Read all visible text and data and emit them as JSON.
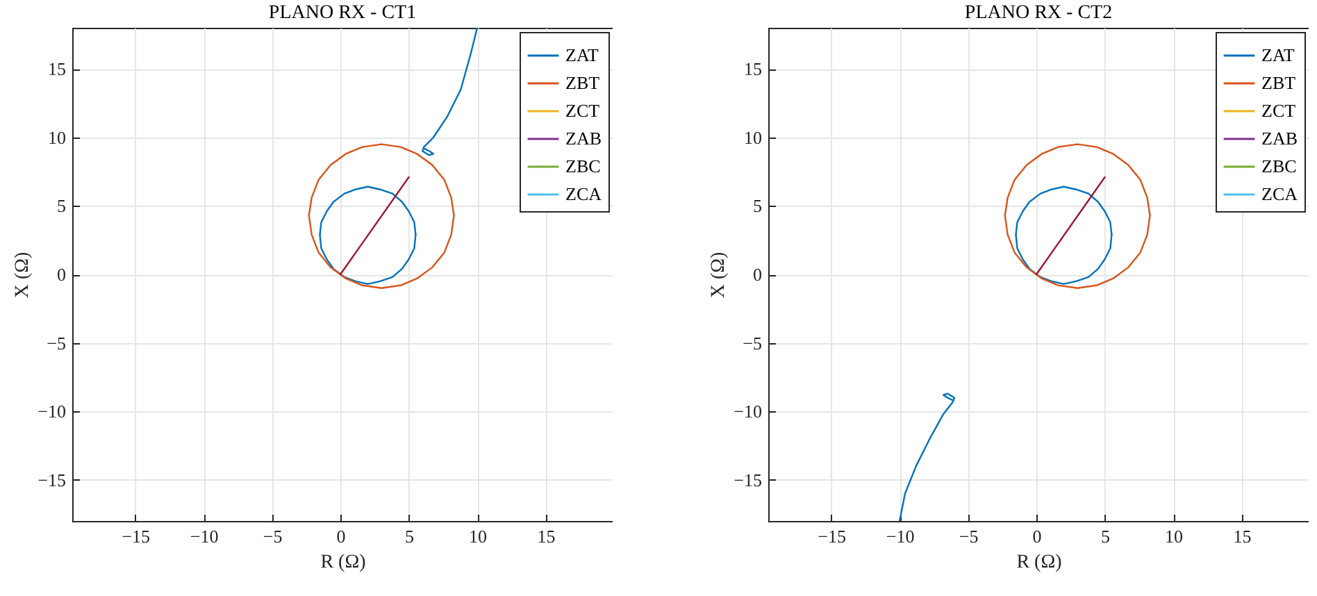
{
  "chart_data": [
    {
      "type": "line",
      "title": "PLANO RX - CT1",
      "xlabel": "R (Ω)",
      "ylabel": "X (Ω)",
      "xlim": [
        -19.6,
        19.9
      ],
      "ylim": [
        -18,
        18
      ],
      "xticks": [
        -15,
        -10,
        -5,
        0,
        5,
        10,
        15
      ],
      "yticks": [
        -15,
        -10,
        -5,
        0,
        5,
        10,
        15
      ],
      "grid": true,
      "legend": "top right",
      "line_style": "solid",
      "marker": "none",
      "series": [
        {
          "name": "ZAT",
          "color": "#0072bd",
          "x": [
            10,
            9.5,
            8.8,
            7.8,
            6.8,
            6.1,
            6,
            6.5,
            6.8,
            6.5,
            6.1,
            null,
            -1.5,
            -1.4,
            -1,
            -0.5,
            0.3,
            1.1,
            2,
            2.9,
            3.8,
            4.5,
            5,
            5.4,
            5.5,
            null,
            -1.5,
            -1.4,
            -1,
            -0.5,
            0.3,
            1.1,
            2,
            2.9,
            3.8,
            4.5,
            5,
            5.4,
            5.5
          ],
          "values": [
            18,
            16,
            13.5,
            11.5,
            10,
            9.3,
            9,
            8.7,
            8.8,
            9,
            9.2,
            null,
            2.9,
            3.8,
            4.6,
            5.3,
            5.9,
            6.2,
            6.4,
            6.2,
            5.9,
            5.3,
            4.6,
            3.8,
            2.9,
            null,
            2.9,
            1.9,
            1.1,
            0.4,
            -0.2,
            -0.5,
            -0.7,
            -0.5,
            -0.2,
            0.4,
            1.1,
            1.9,
            2.9
          ]
        },
        {
          "name": "ZBT",
          "color": "#d95319",
          "x": [
            -2.3,
            -2.1,
            -1.6,
            -0.7,
            0.4,
            1.6,
            3,
            4.4,
            5.6,
            6.7,
            7.6,
            8.1,
            8.3,
            null,
            -2.3,
            -2.1,
            -1.6,
            -0.7,
            0.4,
            1.6,
            3,
            4.4,
            5.6,
            6.7,
            7.6,
            8.1,
            8.3
          ],
          "values": [
            4.3,
            5.6,
            6.9,
            8,
            8.8,
            9.3,
            9.5,
            9.3,
            8.8,
            8,
            6.9,
            5.6,
            4.3,
            null,
            4.3,
            2.9,
            1.6,
            0.5,
            -0.3,
            -0.8,
            -1,
            -0.8,
            -0.3,
            0.5,
            1.6,
            2.9,
            4.3
          ]
        },
        {
          "name": "ZCT",
          "color": "#edb120"
        },
        {
          "name": "ZAB",
          "color": "#7e2f8e"
        },
        {
          "name": "ZBC",
          "color": "#77ac30"
        },
        {
          "name": "ZCA",
          "color": "#4dbeee"
        },
        {
          "color": "#a2142f",
          "x": [
            0,
            5
          ],
          "values": [
            0,
            7.1
          ]
        }
      ]
    },
    {
      "type": "line",
      "title": "PLANO RX - CT2",
      "xlabel": "R (Ω)",
      "ylabel": "X (Ω)",
      "xlim": [
        -19.6,
        19.9
      ],
      "ylim": [
        -18,
        18
      ],
      "xticks": [
        -15,
        -10,
        -5,
        0,
        5,
        10,
        15
      ],
      "yticks": [
        -15,
        -10,
        -5,
        0,
        5,
        10,
        15
      ],
      "grid": true,
      "legend": "top right",
      "line_style": "solid",
      "marker": "none",
      "series": [
        {
          "name": "ZAT",
          "color": "#0072bd",
          "x": [
            -10,
            -9.6,
            -8.8,
            -7.8,
            -6.8,
            -6.1,
            -6,
            -6.5,
            -6.8,
            -6.5,
            -6.1,
            null,
            -1.5,
            -1.4,
            -1,
            -0.5,
            0.3,
            1.1,
            2,
            2.9,
            3.8,
            4.5,
            5,
            5.4,
            5.5,
            null,
            -1.5,
            -1.4,
            -1,
            -0.5,
            0.3,
            1.1,
            2,
            2.9,
            3.8,
            4.5,
            5,
            5.4,
            5.5
          ],
          "values": [
            -18,
            -16,
            -14,
            -12,
            -10.2,
            -9.3,
            -9,
            -8.7,
            -8.8,
            -9,
            -9.2,
            null,
            2.9,
            3.8,
            4.6,
            5.3,
            5.9,
            6.2,
            6.4,
            6.2,
            5.9,
            5.3,
            4.6,
            3.8,
            2.9,
            null,
            2.9,
            1.9,
            1.1,
            0.4,
            -0.2,
            -0.5,
            -0.7,
            -0.5,
            -0.2,
            0.4,
            1.1,
            1.9,
            2.9
          ]
        },
        {
          "name": "ZBT",
          "color": "#d95319",
          "x": [
            -2.3,
            -2.1,
            -1.6,
            -0.7,
            0.4,
            1.6,
            3,
            4.4,
            5.6,
            6.7,
            7.6,
            8.1,
            8.3,
            null,
            -2.3,
            -2.1,
            -1.6,
            -0.7,
            0.4,
            1.6,
            3,
            4.4,
            5.6,
            6.7,
            7.6,
            8.1,
            8.3
          ],
          "values": [
            4.3,
            5.6,
            6.9,
            8,
            8.8,
            9.3,
            9.5,
            9.3,
            8.8,
            8,
            6.9,
            5.6,
            4.3,
            null,
            4.3,
            2.9,
            1.6,
            0.5,
            -0.3,
            -0.8,
            -1,
            -0.8,
            -0.3,
            0.5,
            1.6,
            2.9,
            4.3
          ]
        },
        {
          "name": "ZCT",
          "color": "#edb120"
        },
        {
          "name": "ZAB",
          "color": "#7e2f8e"
        },
        {
          "name": "ZBC",
          "color": "#77ac30"
        },
        {
          "name": "ZCA",
          "color": "#4dbeee"
        },
        {
          "color": "#a2142f",
          "x": [
            0,
            5
          ],
          "values": [
            0,
            7.1
          ]
        }
      ]
    }
  ]
}
